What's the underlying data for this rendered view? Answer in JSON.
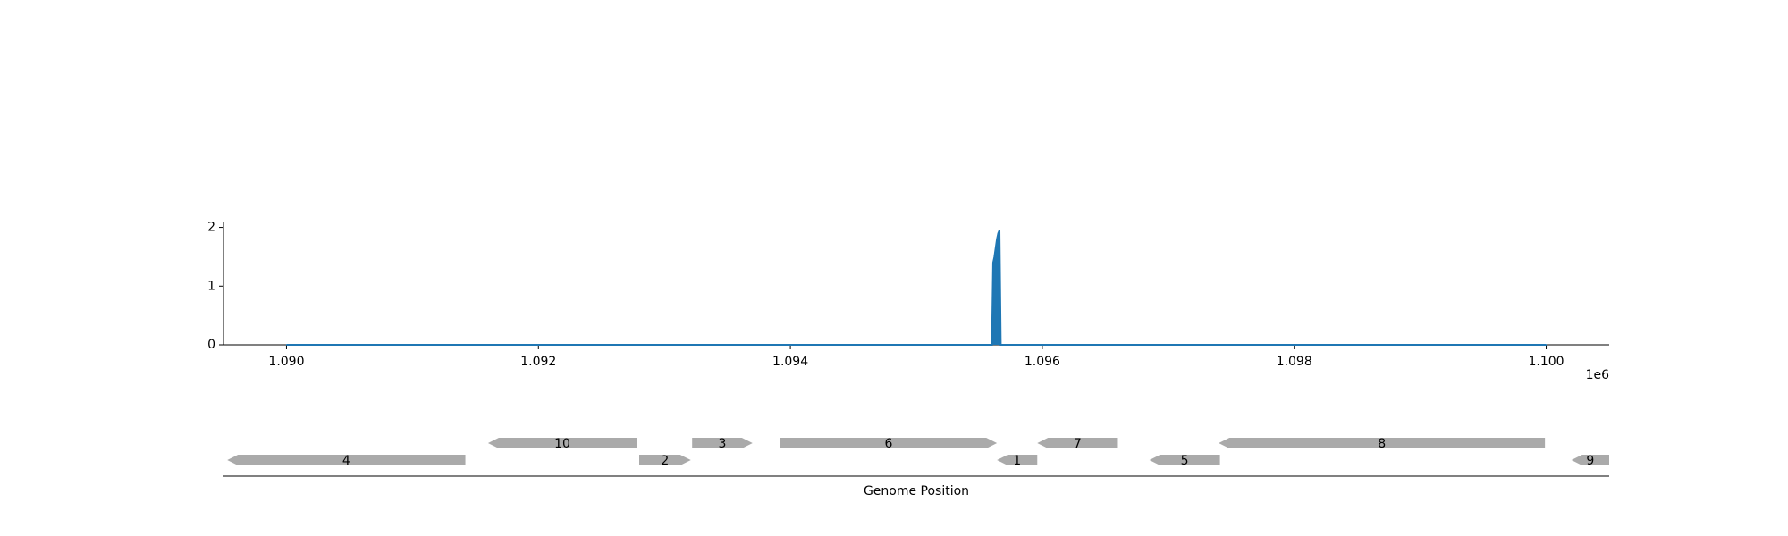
{
  "chart_data": {
    "type": "line",
    "x": [
      1090000,
      1095600,
      1095610,
      1095620,
      1095630,
      1095640,
      1095650,
      1095660,
      1095670,
      1100000
    ],
    "series": [
      {
        "values": [
          0,
          0,
          1.4,
          1.5,
          1.65,
          1.8,
          1.9,
          1.95,
          0,
          0
        ]
      }
    ],
    "xlim": [
      1089500,
      1100500
    ],
    "ylim": [
      0,
      2.1
    ],
    "x_ticks": [
      "1.090",
      "1.092",
      "1.094",
      "1.096",
      "1.098",
      "1.100"
    ],
    "x_tick_values": [
      1090000,
      1092000,
      1094000,
      1096000,
      1098000,
      1100000
    ],
    "x_offset_label": "1e6",
    "y_ticks": [
      "0",
      "1",
      "2"
    ],
    "y_tick_values": [
      0,
      1,
      2
    ],
    "xlabel": "Genome Position",
    "line_color": "#1f77b4",
    "grid": false,
    "genes": [
      {
        "label": "4",
        "start": 1089530,
        "end": 1091420,
        "strand": "-",
        "row": 1
      },
      {
        "label": "10",
        "start": 1091600,
        "end": 1092780,
        "strand": "-",
        "row": 0
      },
      {
        "label": "2",
        "start": 1092800,
        "end": 1093210,
        "strand": "+",
        "row": 1
      },
      {
        "label": "3",
        "start": 1093220,
        "end": 1093700,
        "strand": "+",
        "row": 0
      },
      {
        "label": "6",
        "start": 1093920,
        "end": 1095640,
        "strand": "+",
        "row": 0
      },
      {
        "label": "1",
        "start": 1095640,
        "end": 1095960,
        "strand": "-",
        "row": 1
      },
      {
        "label": "7",
        "start": 1095960,
        "end": 1096600,
        "strand": "-",
        "row": 0
      },
      {
        "label": "5",
        "start": 1096850,
        "end": 1097410,
        "strand": "-",
        "row": 1
      },
      {
        "label": "8",
        "start": 1097400,
        "end": 1099990,
        "strand": "-",
        "row": 0
      },
      {
        "label": "9",
        "start": 1100200,
        "end": 1100500,
        "strand": "-",
        "row": 1
      }
    ],
    "gene_color": "#aaaaaa"
  }
}
